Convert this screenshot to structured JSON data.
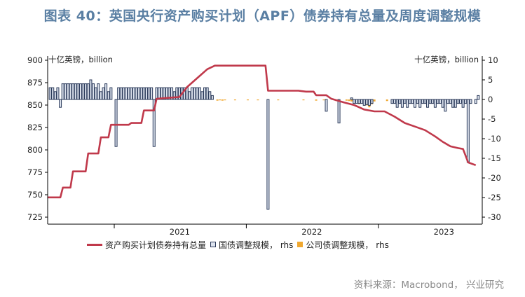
{
  "figure_title": "图表 40：英国央行资产购买计划（APF）债券持有总量及周度调整规模",
  "source": "资料来源：Macrobond， 兴业研究",
  "colors": {
    "title": "#5a7fa3",
    "holdings_line": "#c0394b",
    "gilt_bar_fill": "#dde3ee",
    "gilt_bar_stroke": "#2b3a5a",
    "corp_bar_fill": "#f0a830",
    "axis": "#000000"
  },
  "chart_data": {
    "type": "line+bar",
    "left_axis": {
      "unit_label": "十亿英镑，billion",
      "min": 725,
      "max": 900,
      "ticks": [
        900,
        875,
        850,
        825,
        800,
        775,
        750,
        725
      ]
    },
    "right_axis": {
      "unit_label": "十亿英镑，billion",
      "min": -30,
      "max": 10,
      "ticks": [
        10,
        5,
        0,
        -5,
        -10,
        -15,
        -20,
        -25,
        -30
      ]
    },
    "x_axis": {
      "type": "date",
      "min": "2020-07-01",
      "max": "2023-10-15",
      "year_dividers": [
        "2021-01-01",
        "2022-01-01",
        "2023-01-01"
      ],
      "year_labels": [
        {
          "label": "2021",
          "at": "2021-07-01"
        },
        {
          "label": "2022",
          "at": "2022-07-01"
        },
        {
          "label": "2023",
          "at": "2023-07-01"
        }
      ]
    },
    "legend": [
      {
        "label": "资产购买计划债券持有总量",
        "kind": "line"
      },
      {
        "label": "国债调整规模， rhs",
        "kind": "bar"
      },
      {
        "label": "公司债调整规模， rhs",
        "kind": "bar"
      }
    ],
    "series_holdings": [
      [
        "2020-07-01",
        747
      ],
      [
        "2020-08-05",
        747
      ],
      [
        "2020-08-12",
        758
      ],
      [
        "2020-09-02",
        758
      ],
      [
        "2020-09-09",
        776
      ],
      [
        "2020-10-14",
        776
      ],
      [
        "2020-10-21",
        796
      ],
      [
        "2020-11-18",
        796
      ],
      [
        "2020-11-25",
        814
      ],
      [
        "2020-12-16",
        814
      ],
      [
        "2020-12-23",
        828
      ],
      [
        "2021-02-10",
        828
      ],
      [
        "2021-02-17",
        830
      ],
      [
        "2021-03-17",
        830
      ],
      [
        "2021-03-24",
        844
      ],
      [
        "2021-04-21",
        844
      ],
      [
        "2021-04-28",
        857
      ],
      [
        "2021-05-26",
        858
      ],
      [
        "2021-06-30",
        859
      ],
      [
        "2021-07-21",
        870
      ],
      [
        "2021-08-18",
        880
      ],
      [
        "2021-09-15",
        890
      ],
      [
        "2021-10-06",
        894
      ],
      [
        "2022-02-23",
        894
      ],
      [
        "2022-03-02",
        866
      ],
      [
        "2022-05-25",
        866
      ],
      [
        "2022-06-15",
        865
      ],
      [
        "2022-07-06",
        865
      ],
      [
        "2022-07-13",
        861
      ],
      [
        "2022-08-10",
        861
      ],
      [
        "2022-08-24",
        857
      ],
      [
        "2022-09-28",
        853
      ],
      [
        "2022-10-26",
        850
      ],
      [
        "2022-11-23",
        845
      ],
      [
        "2022-12-21",
        843
      ],
      [
        "2023-01-18",
        843
      ],
      [
        "2023-02-15",
        837
      ],
      [
        "2023-03-15",
        830
      ],
      [
        "2023-04-12",
        826
      ],
      [
        "2023-05-10",
        822
      ],
      [
        "2023-06-07",
        815
      ],
      [
        "2023-06-28",
        809
      ],
      [
        "2023-07-19",
        804
      ],
      [
        "2023-08-09",
        802
      ],
      [
        "2023-08-23",
        801
      ],
      [
        "2023-09-06",
        786
      ],
      [
        "2023-09-27",
        783
      ]
    ],
    "series_gilt_adjustments": [
      [
        "2020-07-08",
        3
      ],
      [
        "2020-07-15",
        3
      ],
      [
        "2020-07-22",
        2
      ],
      [
        "2020-07-29",
        3
      ],
      [
        "2020-08-05",
        -2
      ],
      [
        "2020-08-12",
        4
      ],
      [
        "2020-08-19",
        4
      ],
      [
        "2020-08-26",
        4
      ],
      [
        "2020-09-02",
        4
      ],
      [
        "2020-09-09",
        4
      ],
      [
        "2020-09-16",
        4
      ],
      [
        "2020-09-23",
        4
      ],
      [
        "2020-09-30",
        4
      ],
      [
        "2020-10-07",
        4
      ],
      [
        "2020-10-14",
        4
      ],
      [
        "2020-10-21",
        4
      ],
      [
        "2020-10-28",
        5
      ],
      [
        "2020-11-04",
        4
      ],
      [
        "2020-11-11",
        3
      ],
      [
        "2020-11-18",
        4
      ],
      [
        "2020-11-25",
        2
      ],
      [
        "2020-12-02",
        3
      ],
      [
        "2020-12-09",
        4
      ],
      [
        "2020-12-16",
        2
      ],
      [
        "2020-12-23",
        3
      ],
      [
        "2021-01-06",
        -12
      ],
      [
        "2021-01-13",
        3
      ],
      [
        "2021-01-20",
        3
      ],
      [
        "2021-01-27",
        3
      ],
      [
        "2021-02-03",
        3
      ],
      [
        "2021-02-10",
        3
      ],
      [
        "2021-02-17",
        3
      ],
      [
        "2021-02-24",
        3
      ],
      [
        "2021-03-03",
        3
      ],
      [
        "2021-03-10",
        3
      ],
      [
        "2021-03-17",
        3
      ],
      [
        "2021-03-24",
        3
      ],
      [
        "2021-03-31",
        3
      ],
      [
        "2021-04-07",
        3
      ],
      [
        "2021-04-14",
        3
      ],
      [
        "2021-04-21",
        -12
      ],
      [
        "2021-04-28",
        3
      ],
      [
        "2021-05-05",
        3
      ],
      [
        "2021-05-12",
        3
      ],
      [
        "2021-05-19",
        3
      ],
      [
        "2021-05-26",
        3
      ],
      [
        "2021-06-02",
        3
      ],
      [
        "2021-06-09",
        3
      ],
      [
        "2021-06-16",
        2
      ],
      [
        "2021-06-23",
        3
      ],
      [
        "2021-06-30",
        3
      ],
      [
        "2021-07-07",
        3
      ],
      [
        "2021-07-14",
        3
      ],
      [
        "2021-07-21",
        3
      ],
      [
        "2021-07-28",
        2
      ],
      [
        "2021-08-04",
        3
      ],
      [
        "2021-08-11",
        3
      ],
      [
        "2021-08-18",
        3
      ],
      [
        "2021-08-25",
        3
      ],
      [
        "2021-09-01",
        2
      ],
      [
        "2021-09-08",
        3
      ],
      [
        "2021-09-15",
        3
      ],
      [
        "2021-09-22",
        2
      ],
      [
        "2021-09-29",
        1
      ],
      [
        "2022-03-02",
        -28
      ],
      [
        "2022-08-10",
        -3
      ],
      [
        "2022-09-14",
        -6
      ],
      [
        "2022-10-19",
        0.4
      ],
      [
        "2022-10-26",
        -1
      ],
      [
        "2022-11-02",
        -1
      ],
      [
        "2022-11-09",
        -1
      ],
      [
        "2022-11-16",
        -1
      ],
      [
        "2022-11-23",
        -1.5
      ],
      [
        "2022-11-30",
        -1.3
      ],
      [
        "2022-12-07",
        -1.5
      ],
      [
        "2022-12-14",
        -1
      ],
      [
        "2023-02-08",
        -1
      ],
      [
        "2023-02-15",
        -1
      ],
      [
        "2023-02-22",
        -2
      ],
      [
        "2023-03-01",
        -1
      ],
      [
        "2023-03-08",
        -2
      ],
      [
        "2023-03-15",
        -1
      ],
      [
        "2023-03-22",
        -2
      ],
      [
        "2023-03-29",
        -1
      ],
      [
        "2023-04-05",
        -1
      ],
      [
        "2023-04-12",
        -2
      ],
      [
        "2023-04-19",
        -1
      ],
      [
        "2023-04-26",
        -2
      ],
      [
        "2023-05-03",
        -1
      ],
      [
        "2023-05-10",
        -1
      ],
      [
        "2023-05-17",
        -2
      ],
      [
        "2023-05-24",
        -1
      ],
      [
        "2023-05-31",
        -1
      ],
      [
        "2023-06-07",
        -2
      ],
      [
        "2023-06-14",
        -1
      ],
      [
        "2023-06-21",
        -1
      ],
      [
        "2023-06-28",
        -2
      ],
      [
        "2023-07-05",
        -3
      ],
      [
        "2023-07-12",
        -1
      ],
      [
        "2023-07-19",
        -1
      ],
      [
        "2023-07-26",
        -2
      ],
      [
        "2023-08-02",
        -2
      ],
      [
        "2023-08-09",
        -1
      ],
      [
        "2023-08-16",
        -1
      ],
      [
        "2023-08-23",
        -2
      ],
      [
        "2023-08-30",
        -1
      ],
      [
        "2023-09-06",
        -16
      ],
      [
        "2023-09-13",
        -1
      ],
      [
        "2023-09-27",
        -1
      ],
      [
        "2023-10-04",
        1
      ]
    ],
    "series_corp_adjustments": [
      [
        "2021-10-13",
        -0.3
      ],
      [
        "2021-10-20",
        -0.2
      ],
      [
        "2021-10-27",
        -0.3
      ],
      [
        "2021-11-03",
        -0.2
      ],
      [
        "2021-12-01",
        -0.2
      ],
      [
        "2022-01-05",
        -0.2
      ],
      [
        "2022-02-02",
        -0.2
      ],
      [
        "2022-03-30",
        -0.2
      ],
      [
        "2022-06-08",
        -0.2
      ],
      [
        "2022-07-13",
        -0.3
      ],
      [
        "2022-08-03",
        -0.2
      ],
      [
        "2022-09-07",
        -0.4
      ],
      [
        "2022-10-05",
        -0.3
      ],
      [
        "2022-10-12",
        -0.4
      ],
      [
        "2022-10-19",
        -0.5
      ],
      [
        "2022-10-26",
        -0.4
      ],
      [
        "2022-11-02",
        -1
      ],
      [
        "2022-11-09",
        -1.2
      ],
      [
        "2022-11-16",
        -1
      ],
      [
        "2022-11-23",
        -1.5
      ],
      [
        "2022-11-30",
        -1.5
      ],
      [
        "2022-12-07",
        -2
      ],
      [
        "2022-12-14",
        -1.2
      ],
      [
        "2022-12-21",
        -0.5
      ],
      [
        "2023-01-25",
        -0.4
      ],
      [
        "2023-02-08",
        -0.3
      ],
      [
        "2023-02-22",
        -0.4
      ],
      [
        "2023-03-08",
        -0.3
      ],
      [
        "2023-03-22",
        -0.5
      ],
      [
        "2023-04-05",
        -0.4
      ],
      [
        "2023-04-19",
        -0.5
      ],
      [
        "2023-05-03",
        -0.4
      ],
      [
        "2023-05-17",
        -0.4
      ],
      [
        "2023-05-31",
        -0.5
      ],
      [
        "2023-06-14",
        -0.4
      ],
      [
        "2023-06-28",
        -0.4
      ],
      [
        "2023-07-12",
        -0.5
      ],
      [
        "2023-07-26",
        -0.4
      ],
      [
        "2023-08-09",
        -0.4
      ],
      [
        "2023-08-23",
        -0.5
      ]
    ]
  }
}
